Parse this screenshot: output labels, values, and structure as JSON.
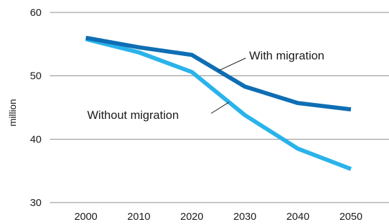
{
  "chart_data": {
    "type": "line",
    "title": "",
    "xlabel": "",
    "ylabel": "million",
    "x": [
      2000,
      2010,
      2020,
      2030,
      2040,
      2050
    ],
    "xticks": [
      "2000",
      "2010",
      "2020",
      "2030",
      "2040",
      "2050"
    ],
    "ylim": [
      30,
      60
    ],
    "yticks": [
      "30",
      "40",
      "50",
      "60"
    ],
    "grid": true,
    "series": [
      {
        "name": "With migration",
        "color": "#0e6eb4",
        "values": [
          56,
          54.5,
          53.3,
          48.3,
          45.7,
          44.7
        ]
      },
      {
        "name": "Without migration",
        "color": "#2ab3eb",
        "values": [
          55.8,
          53.7,
          50.6,
          43.8,
          38.5,
          35.3
        ]
      }
    ]
  }
}
